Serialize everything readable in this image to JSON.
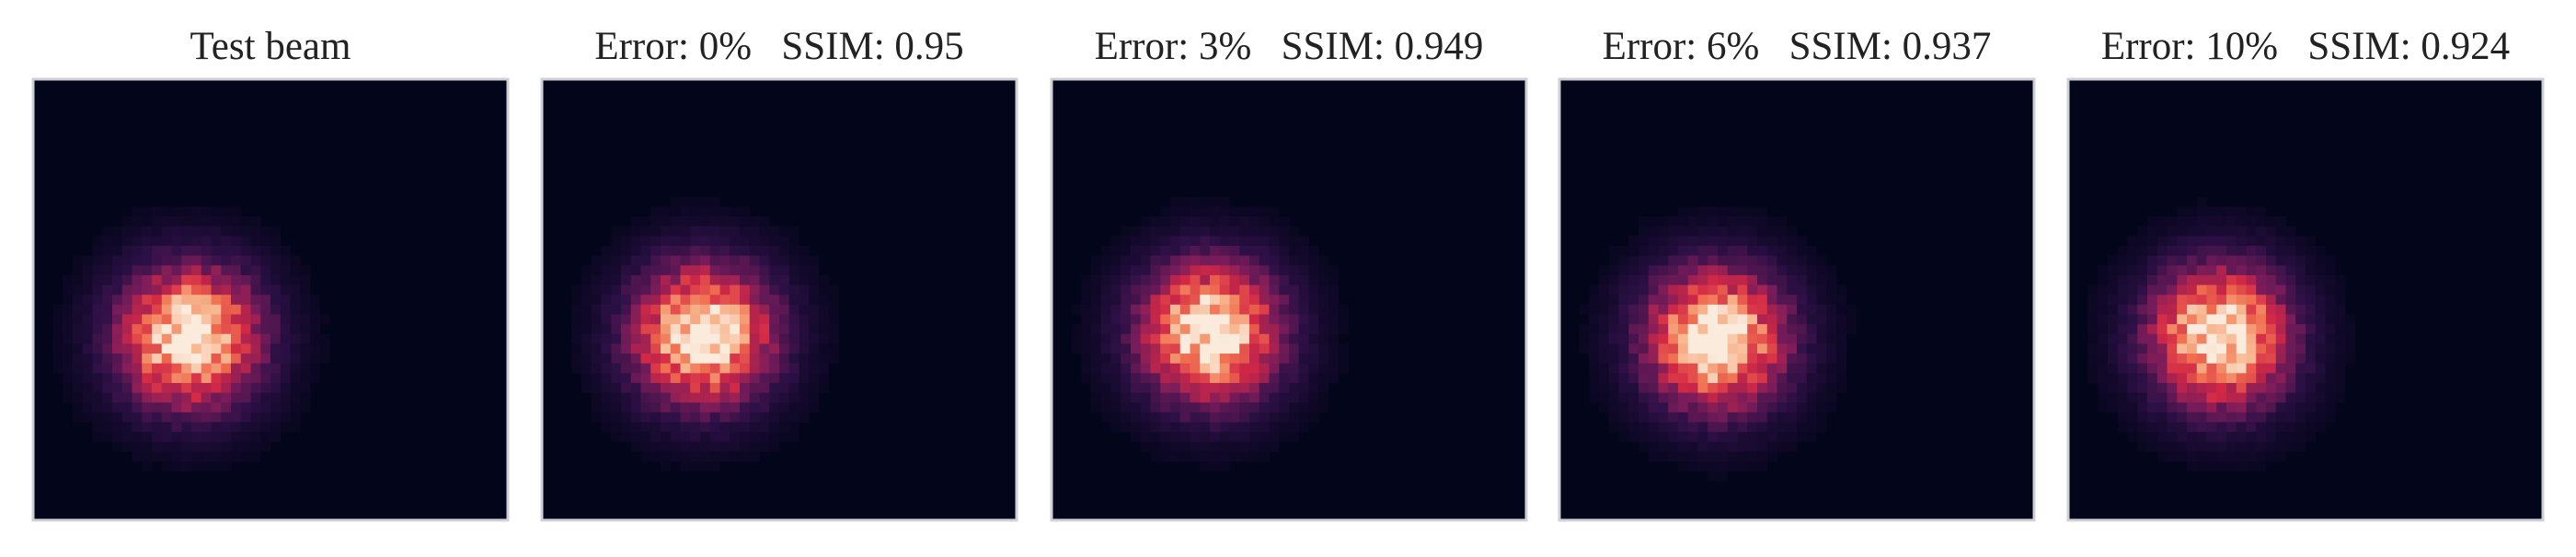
{
  "panels": [
    {
      "title": "Test beam"
    },
    {
      "title": "Error: 0%   SSIM: 0.95"
    },
    {
      "title": "Error: 3%   SSIM: 0.949"
    },
    {
      "title": "Error: 6%   SSIM: 0.937"
    },
    {
      "title": "Error: 10%   SSIM: 0.924"
    }
  ]
}
